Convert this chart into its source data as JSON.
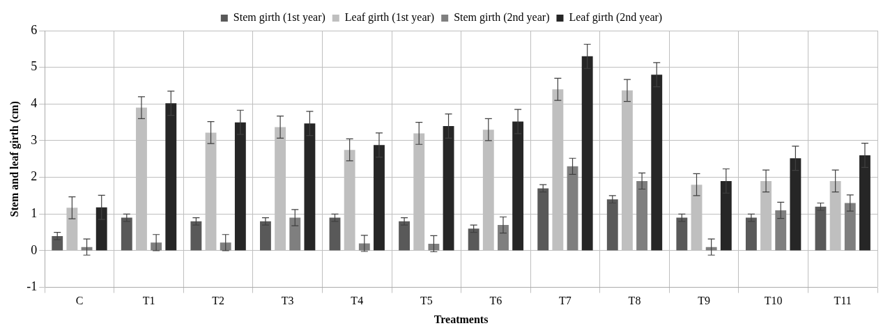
{
  "chart_data": {
    "type": "bar",
    "xlabel": "Treatments",
    "ylabel": "Stem and leaf girth (cm)",
    "categories": [
      "C",
      "T1",
      "T2",
      "T3",
      "T4",
      "T5",
      "T6",
      "T7",
      "T8",
      "T9",
      "T10",
      "T11"
    ],
    "series": [
      {
        "name": "Stem girth (1st year)",
        "color": "#595959",
        "values": [
          0.4,
          0.9,
          0.8,
          0.8,
          0.9,
          0.8,
          0.6,
          1.7,
          1.4,
          0.9,
          0.9,
          1.2
        ],
        "errors": [
          0.1,
          0.1,
          0.1,
          0.1,
          0.1,
          0.1,
          0.1,
          0.1,
          0.1,
          0.1,
          0.1,
          0.1
        ]
      },
      {
        "name": "Leaf girth (1st year)",
        "color": "#bfbfbf",
        "values": [
          1.17,
          3.9,
          3.22,
          3.37,
          2.75,
          3.2,
          3.3,
          4.4,
          4.37,
          1.8,
          1.9,
          1.9
        ],
        "errors": [
          0.3,
          0.3,
          0.3,
          0.3,
          0.3,
          0.3,
          0.3,
          0.3,
          0.3,
          0.3,
          0.3,
          0.3
        ]
      },
      {
        "name": "Stem girth (2nd year)",
        "color": "#7f7f7f",
        "values": [
          0.1,
          0.22,
          0.22,
          0.9,
          0.2,
          0.19,
          0.7,
          2.3,
          1.9,
          0.1,
          1.1,
          1.3
        ],
        "errors": [
          0.22,
          0.22,
          0.22,
          0.22,
          0.22,
          0.22,
          0.22,
          0.22,
          0.22,
          0.22,
          0.22,
          0.22
        ]
      },
      {
        "name": "Leaf girth (2nd year)",
        "color": "#262626",
        "values": [
          1.18,
          4.02,
          3.5,
          3.47,
          2.88,
          3.4,
          3.52,
          5.3,
          4.8,
          1.9,
          2.52,
          2.6
        ],
        "errors": [
          0.33,
          0.33,
          0.33,
          0.33,
          0.33,
          0.33,
          0.33,
          0.33,
          0.33,
          0.33,
          0.33,
          0.33
        ]
      }
    ],
    "ylim": [
      -1,
      6
    ],
    "yticks": [
      -1,
      0,
      1,
      2,
      3,
      4,
      5,
      6
    ],
    "grid": true,
    "legend": "top"
  }
}
